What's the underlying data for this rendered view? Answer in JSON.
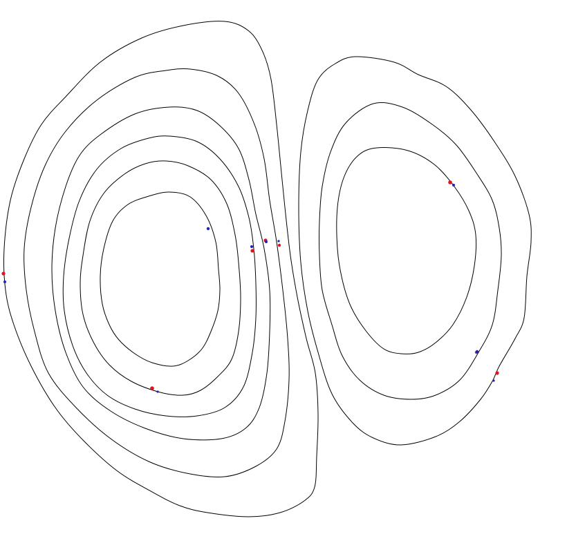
{
  "diagram": {
    "type": "contour-plot",
    "background_color": "#ffffff",
    "line_color": "#000000",
    "marker_colors": {
      "red": "#e0141e",
      "blue": "#1a22c8"
    },
    "left_cell_contour_count": 6,
    "right_cell_contour_count": 3,
    "red_marker_count": 9,
    "blue_marker_count": 10
  }
}
